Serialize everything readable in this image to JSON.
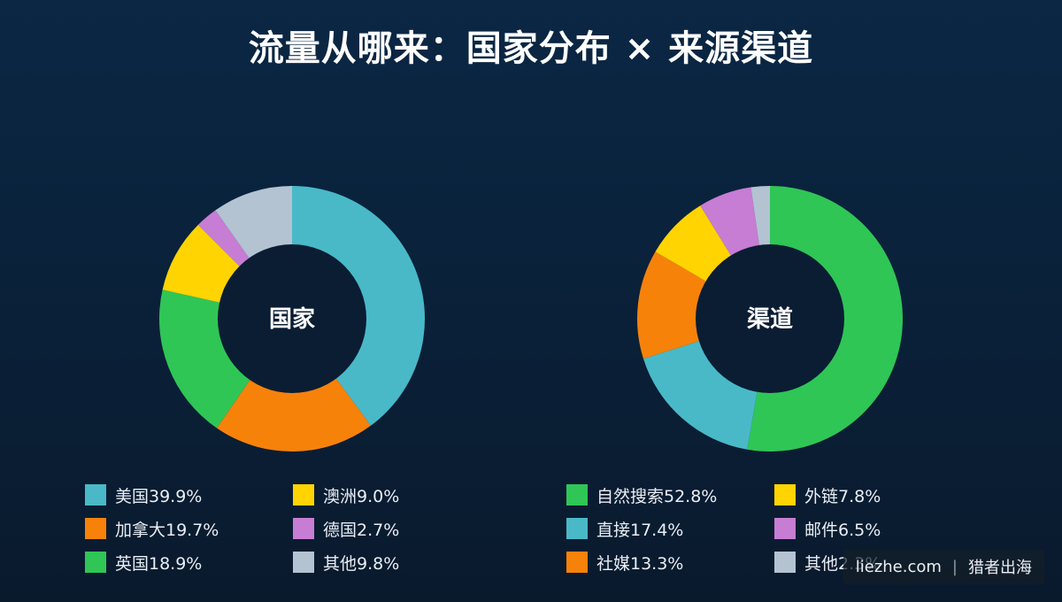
{
  "title": "流量从哪来：国家分布 × 来源渠道",
  "watermark": {
    "site": "liezhe.com",
    "separator": "|",
    "brand": "猎者出海"
  },
  "chart_data": [
    {
      "type": "pie",
      "variant": "donut",
      "center_label": "国家",
      "slices": [
        {
          "label": "美国",
          "value": 39.9,
          "legend": "美国39.9%",
          "color": "#49b9c8"
        },
        {
          "label": "加拿大",
          "value": 19.7,
          "legend": "加拿大19.7%",
          "color": "#f7820a"
        },
        {
          "label": "英国",
          "value": 18.9,
          "legend": "英国18.9%",
          "color": "#2fc656"
        },
        {
          "label": "澳洲",
          "value": 9.0,
          "legend": "澳洲9.0%",
          "color": "#ffd400"
        },
        {
          "label": "德国",
          "value": 2.7,
          "legend": "德国2.7%",
          "color": "#c77dd4"
        },
        {
          "label": "其他",
          "value": 9.8,
          "legend": "其他9.8%",
          "color": "#b3c3d2"
        }
      ]
    },
    {
      "type": "pie",
      "variant": "donut",
      "center_label": "渠道",
      "slices": [
        {
          "label": "自然搜索",
          "value": 52.8,
          "legend": "自然搜索52.8%",
          "color": "#2fc656"
        },
        {
          "label": "直接",
          "value": 17.4,
          "legend": "直接17.4%",
          "color": "#49b9c8"
        },
        {
          "label": "社媒",
          "value": 13.3,
          "legend": "社媒13.3%",
          "color": "#f7820a"
        },
        {
          "label": "外链",
          "value": 7.8,
          "legend": "外链7.8%",
          "color": "#ffd400"
        },
        {
          "label": "邮件",
          "value": 6.5,
          "legend": "邮件6.5%",
          "color": "#c77dd4"
        },
        {
          "label": "其他",
          "value": 2.3,
          "legend": "其他2.3%",
          "color": "#b3c3d2"
        }
      ]
    }
  ]
}
